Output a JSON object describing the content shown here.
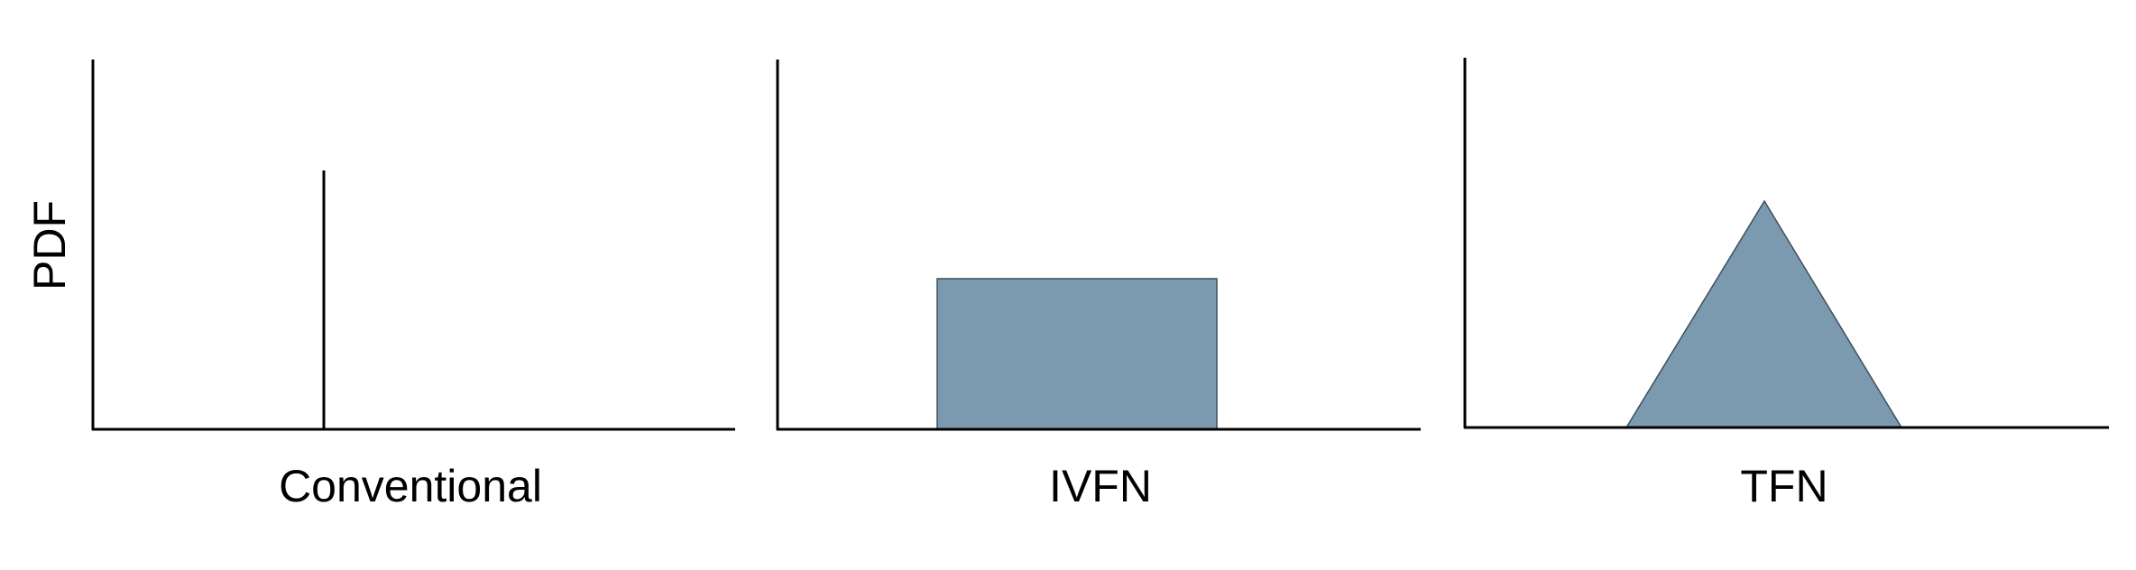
{
  "y_axis_label": "PDF",
  "panels": [
    {
      "label": "Conventional",
      "shape": "spike"
    },
    {
      "label": "IVFN",
      "shape": "rectangle"
    },
    {
      "label": "TFN",
      "shape": "triangle"
    }
  ],
  "colors": {
    "axis": "#000000",
    "fill": "#7b9aaf",
    "fill_stroke": "#3d4f5c"
  }
}
